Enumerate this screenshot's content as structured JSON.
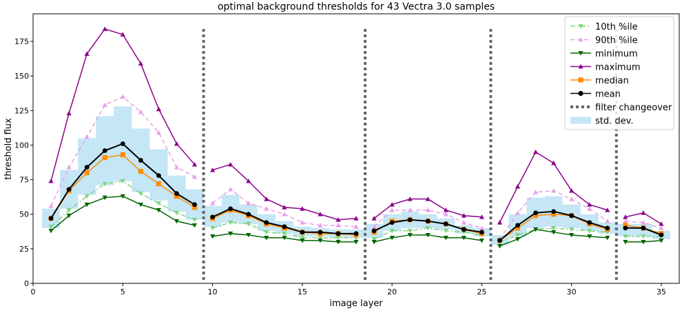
{
  "chart_data": {
    "type": "line",
    "title": "optimal background thresholds for 43 Vectra 3.0 samples",
    "xlabel": "image layer",
    "ylabel": "threshold flux",
    "xlim": [
      0,
      36
    ],
    "ylim": [
      0,
      195
    ],
    "x_ticks": [
      0,
      5,
      10,
      15,
      20,
      25,
      30,
      35
    ],
    "y_ticks": [
      0,
      25,
      50,
      75,
      100,
      125,
      150,
      175
    ],
    "grid": false,
    "legend_position": "top-right",
    "x": [
      1,
      2,
      3,
      4,
      5,
      6,
      7,
      8,
      9,
      10,
      11,
      12,
      13,
      14,
      15,
      16,
      17,
      18,
      19,
      20,
      21,
      22,
      23,
      24,
      25,
      26,
      27,
      28,
      29,
      30,
      31,
      32,
      33,
      34,
      35
    ],
    "series": [
      {
        "name": "10th %ile",
        "color": "#7ed47e",
        "dash": "dashdot",
        "marker": "triangle-down",
        "values": [
          41,
          53,
          63,
          72,
          74,
          65,
          58,
          51,
          46,
          40,
          44,
          43,
          37,
          36,
          33,
          33,
          33,
          33,
          32,
          38,
          38,
          40,
          38,
          37,
          35,
          30,
          35,
          39,
          40,
          39,
          38,
          37,
          34,
          34,
          34
        ]
      },
      {
        "name": "90th %ile",
        "color": "#e8a0e8",
        "dash": "dashed",
        "marker": "triangle-up",
        "values": [
          56,
          84,
          106,
          129,
          135,
          124,
          109,
          84,
          77,
          58,
          68,
          58,
          54,
          50,
          44,
          42,
          42,
          41,
          41,
          53,
          53,
          53,
          50,
          44,
          40,
          32,
          51,
          66,
          67,
          61,
          54,
          45,
          45,
          44,
          40
        ]
      },
      {
        "name": "minimum",
        "color": "#006400",
        "dash": "solid",
        "marker": "triangle-down",
        "values": [
          38,
          49,
          57,
          62,
          63,
          57,
          53,
          45,
          42,
          34,
          36,
          35,
          33,
          33,
          31,
          31,
          30,
          30,
          30,
          33,
          35,
          35,
          33,
          33,
          31,
          27,
          32,
          39,
          37,
          35,
          34,
          33,
          30,
          30,
          31
        ]
      },
      {
        "name": "maximum",
        "color": "#8b008b",
        "dash": "solid",
        "marker": "triangle-up",
        "values": [
          74,
          123,
          166,
          184,
          180,
          159,
          126,
          101,
          86,
          82,
          86,
          74,
          61,
          55,
          54,
          50,
          46,
          47,
          47,
          57,
          61,
          61,
          53,
          49,
          48,
          44,
          70,
          95,
          87,
          67,
          57,
          53,
          48,
          51,
          43
        ]
      },
      {
        "name": "median",
        "color": "#ff8c00",
        "dash": "solid",
        "marker": "square",
        "values": [
          47,
          67,
          80,
          91,
          93,
          81,
          72,
          63,
          55,
          47,
          53,
          49,
          43,
          40,
          37,
          36,
          36,
          35,
          37,
          45,
          46,
          45,
          43,
          39,
          36,
          31,
          40,
          49,
          50,
          49,
          43,
          39,
          42,
          40,
          36
        ]
      },
      {
        "name": "mean",
        "color": "#000000",
        "dash": "solid",
        "marker": "circle",
        "values": [
          47,
          68,
          84,
          96,
          101,
          89,
          78,
          65,
          57,
          48,
          54,
          50,
          44,
          41,
          37,
          37,
          36,
          36,
          38,
          44,
          46,
          45,
          43,
          39,
          37,
          31,
          42,
          51,
          52,
          49,
          44,
          40,
          40,
          40,
          35
        ]
      }
    ],
    "filter_changeovers": {
      "name": "filter changeover",
      "color": "#666666",
      "x": [
        9.5,
        18.5,
        25.5,
        32.5
      ]
    },
    "std_dev": {
      "name": "std. dev.",
      "color": "#c4e6f5",
      "lower": [
        40,
        54,
        64,
        71,
        74,
        66,
        60,
        52,
        46,
        41,
        44,
        43,
        38,
        36,
        34,
        34,
        33,
        33,
        33,
        38,
        40,
        40,
        39,
        36,
        34,
        28,
        34,
        40,
        41,
        40,
        38,
        36,
        34,
        34,
        32
      ],
      "upper": [
        54,
        82,
        105,
        121,
        128,
        112,
        97,
        78,
        68,
        56,
        64,
        57,
        50,
        45,
        41,
        40,
        39,
        39,
        43,
        50,
        52,
        50,
        47,
        42,
        40,
        35,
        50,
        62,
        63,
        57,
        50,
        44,
        43,
        43,
        38
      ]
    }
  }
}
